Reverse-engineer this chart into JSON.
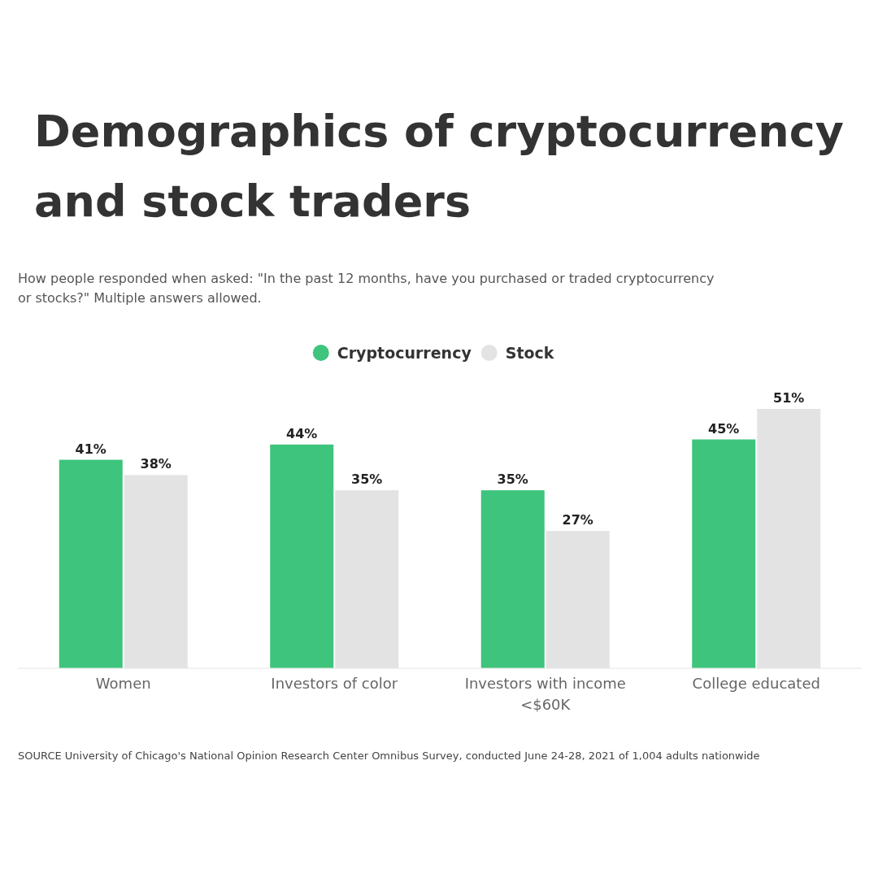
{
  "chart_data": {
    "type": "bar",
    "title": "Demographics of cryptocurrency and stock traders",
    "subtitle": "How people responded when asked: \"In the past 12 months, have you purchased or traded cryptocurrency or stocks?\" Multiple answers allowed.",
    "categories": [
      "Women",
      "Investors of color",
      "Investors with income <$60K",
      "College educated"
    ],
    "series": [
      {
        "name": "Cryptocurrency",
        "color": "#3ec47c",
        "values": [
          41,
          44,
          35,
          45
        ],
        "value_labels": [
          "41%",
          "44%",
          "35%",
          "45%"
        ]
      },
      {
        "name": "Stock",
        "color": "#e3e3e3",
        "values": [
          38,
          35,
          27,
          51
        ],
        "value_labels": [
          "38%",
          "35%",
          "27%",
          "51%"
        ]
      }
    ],
    "tick_labels": "x",
    "legend": "top",
    "annotations": [
      "SOURCE University of Chicago's National Opinion Research Center Omnibus Survey, conducted June 24-28, 2021 of 1,004 adults nationwide"
    ]
  }
}
